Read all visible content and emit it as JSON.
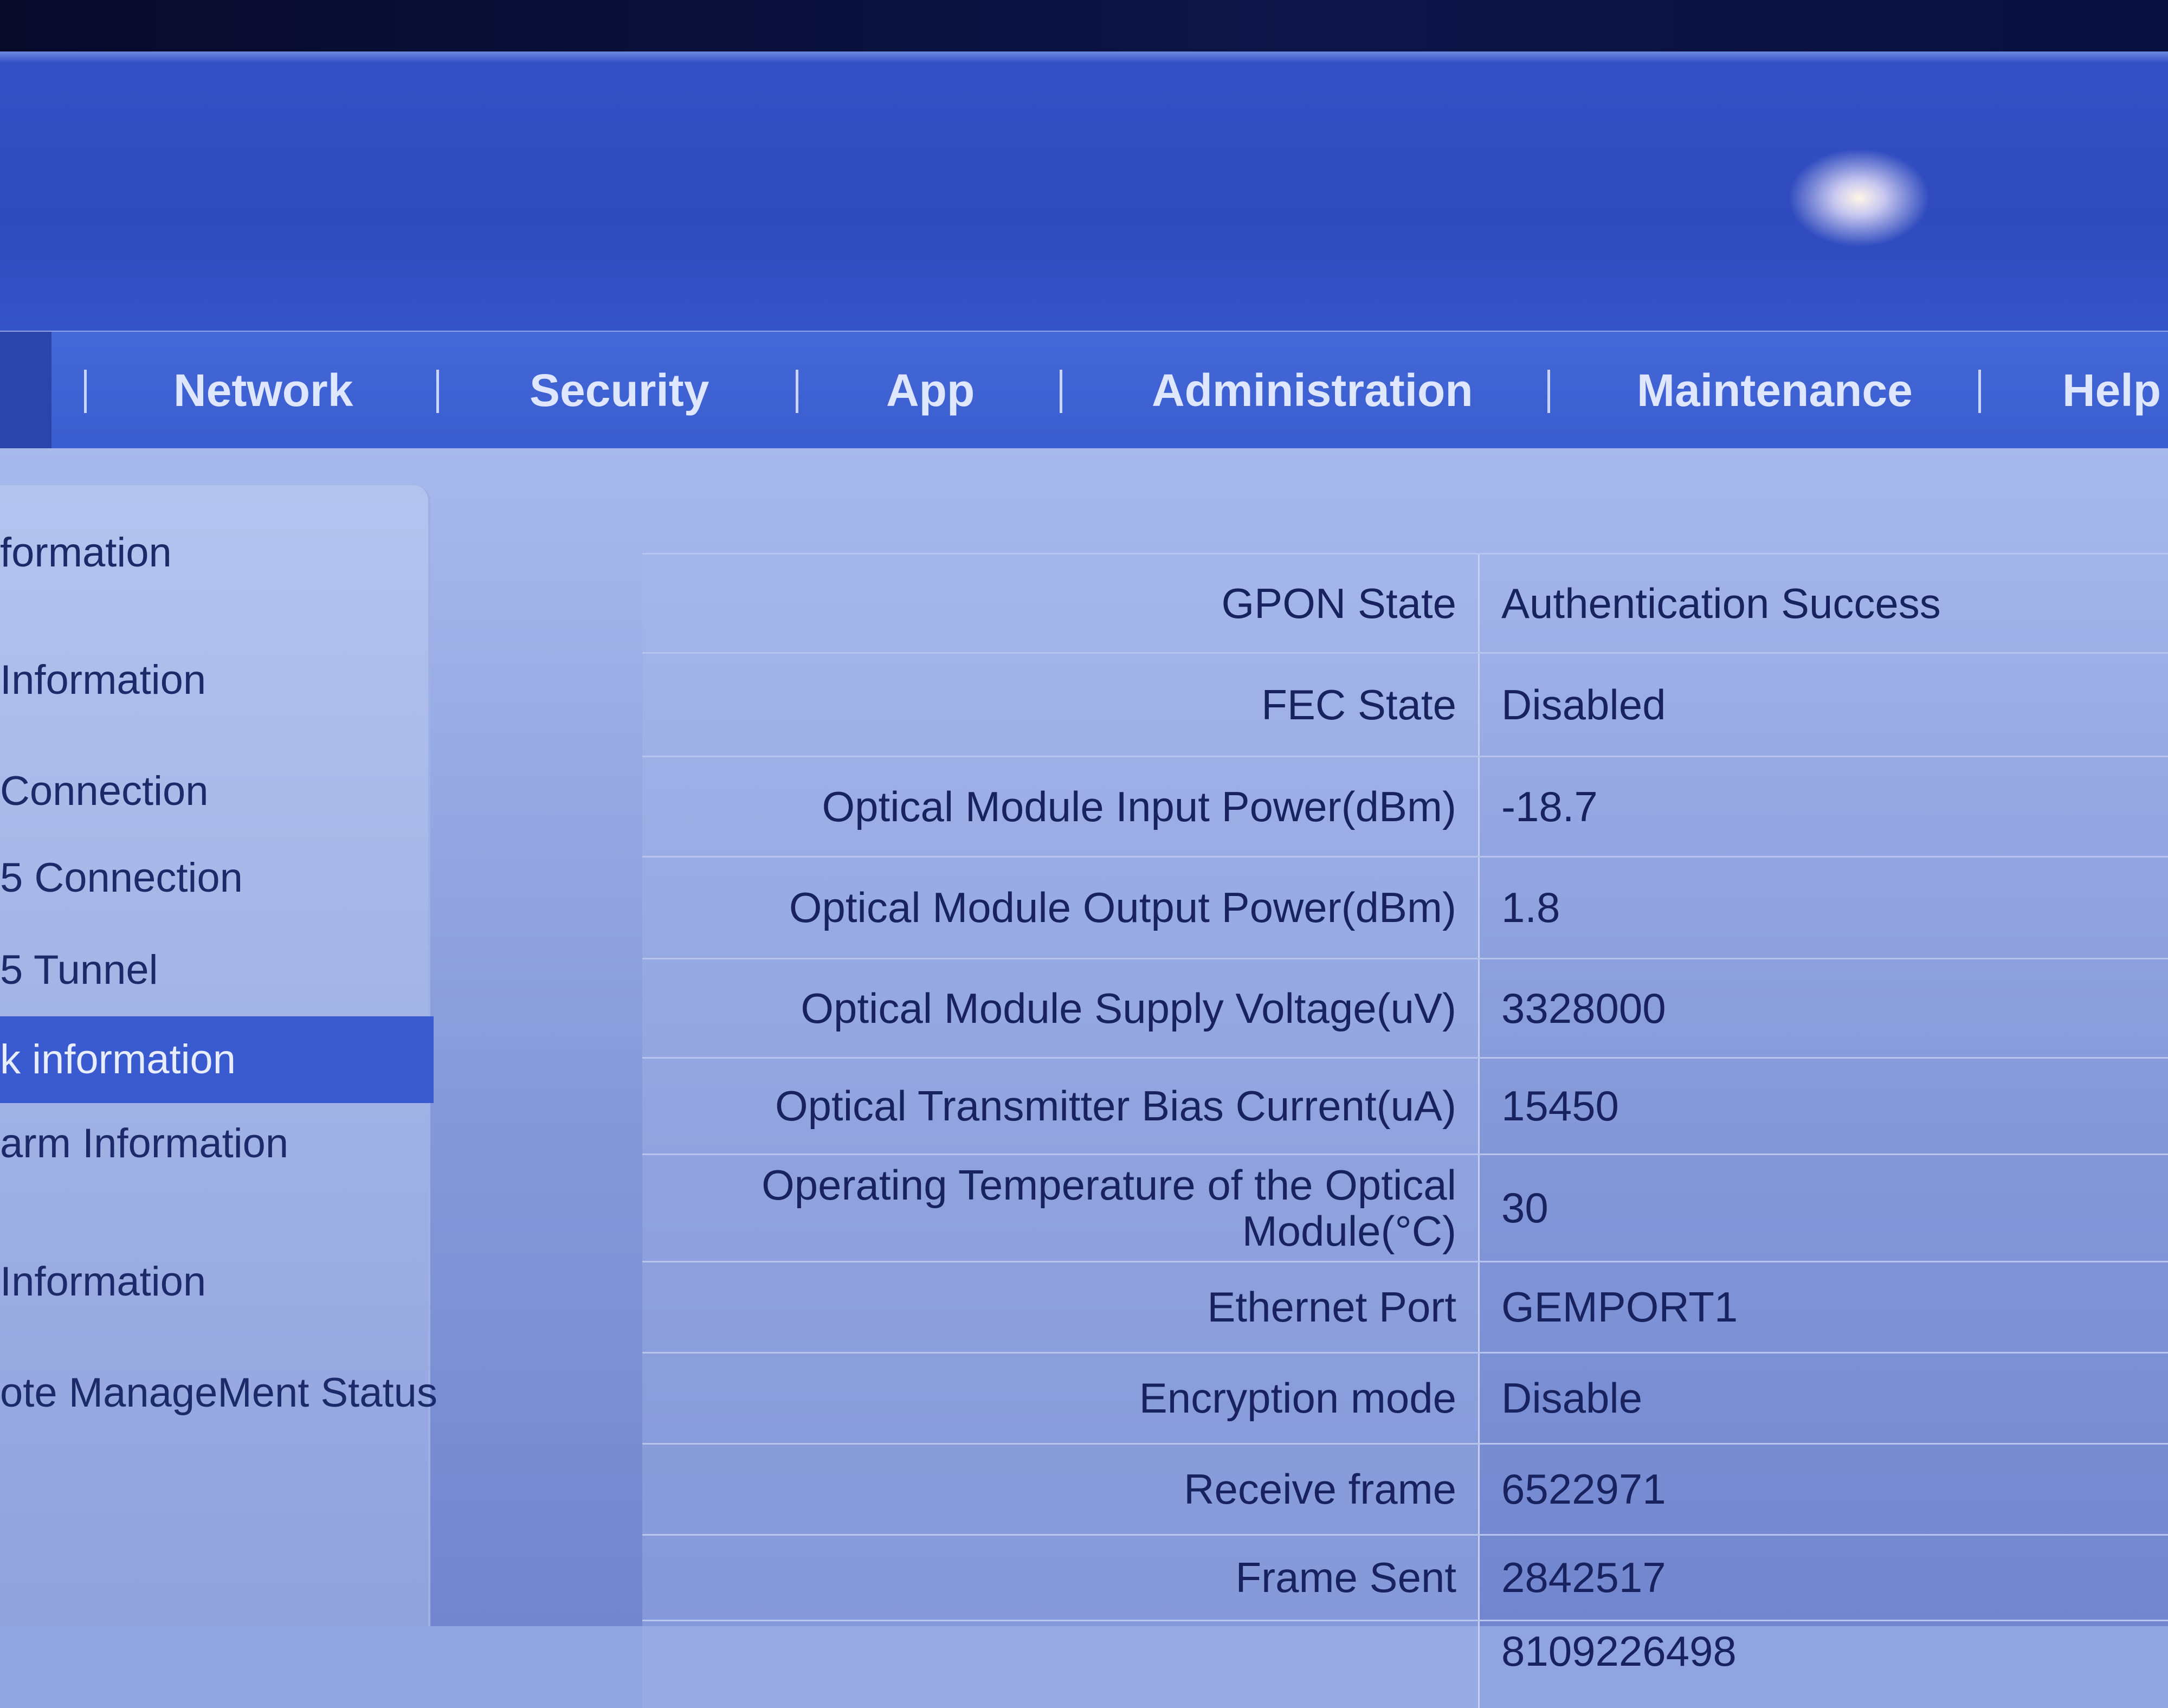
{
  "nav": {
    "items": [
      "Network",
      "Security",
      "App",
      "Administration",
      "Maintenance",
      "Help"
    ]
  },
  "sidebar": {
    "items": [
      {
        "label": "formation"
      },
      {
        "label": "Information"
      },
      {
        "label": " Connection"
      },
      {
        "label": "5 Connection"
      },
      {
        "label": "5 Tunnel"
      },
      {
        "label": "k information",
        "selected": true
      },
      {
        "label": "arm Information"
      },
      {
        "label": "Information"
      },
      {
        "label": "ote ManageMent Status"
      }
    ]
  },
  "table": {
    "rows": [
      {
        "label": "GPON State",
        "value": "Authentication Success"
      },
      {
        "label": "FEC State",
        "value": "Disabled"
      },
      {
        "label": "Optical Module Input Power(dBm)",
        "value": "-18.7"
      },
      {
        "label": "Optical Module Output Power(dBm)",
        "value": "1.8"
      },
      {
        "label": "Optical Module Supply Voltage(uV)",
        "value": "3328000"
      },
      {
        "label": "Optical Transmitter Bias Current(uA)",
        "value": "15450"
      },
      {
        "label": "Operating Temperature of the Optical Module(°C)",
        "value": "30"
      },
      {
        "label": "Ethernet Port",
        "value": "GEMPORT1"
      },
      {
        "label": "Encryption mode",
        "value": "Disable"
      },
      {
        "label": "Receive frame",
        "value": "6522971"
      },
      {
        "label": "Frame Sent",
        "value": "2842517"
      },
      {
        "label": "",
        "value": "8109226498"
      }
    ]
  },
  "colors": {
    "nav": "#3a5dcf",
    "selected": "#3a5bd0",
    "banner": "#2f4bbd"
  }
}
